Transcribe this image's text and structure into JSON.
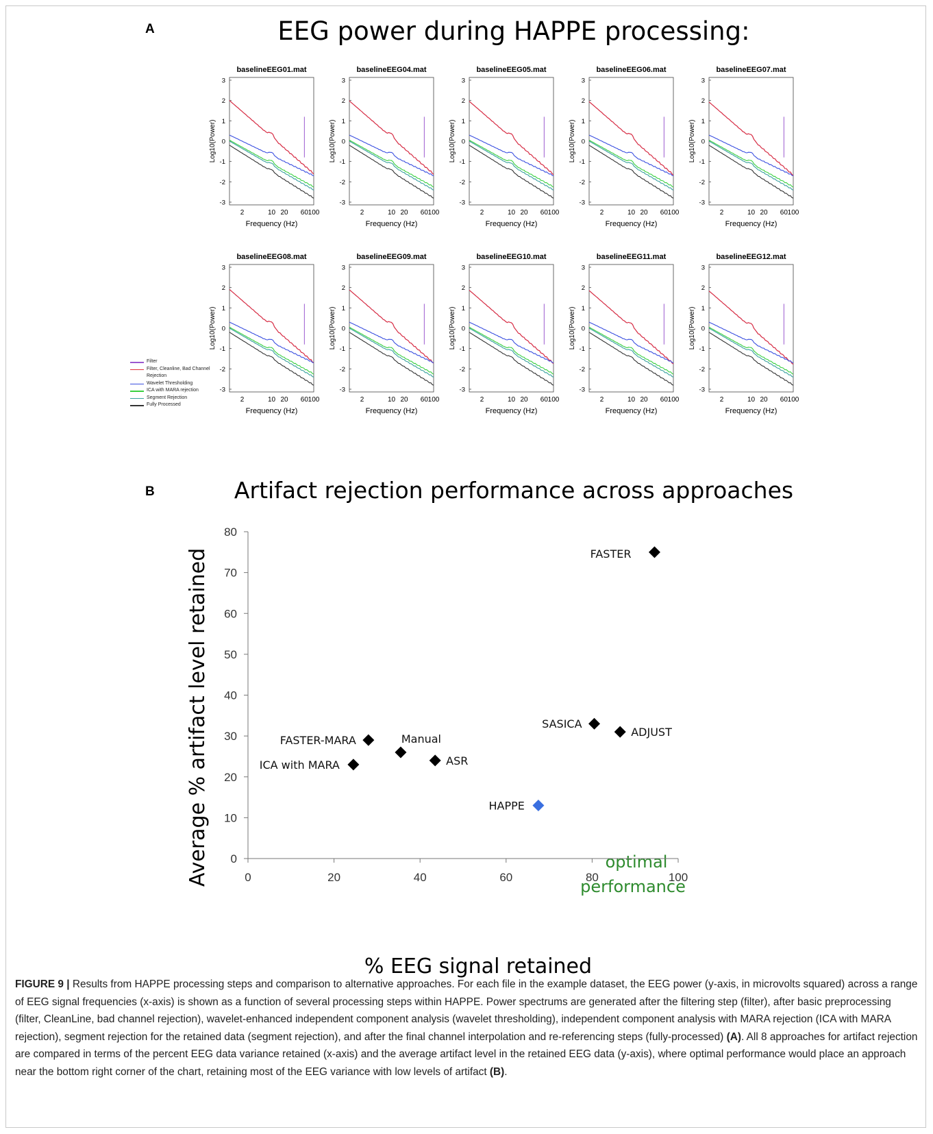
{
  "panel_a": {
    "letter": "A",
    "title": "EEG power during HAPPE processing:",
    "ylabel": "Log10(Power)",
    "xlabel": "Frequency (Hz)",
    "xticks": [
      "2",
      "10",
      "20",
      "60",
      "100"
    ],
    "yticks": [
      "3",
      "2",
      "1",
      "0",
      "-1",
      "-2",
      "-3"
    ],
    "subplot_titles": [
      "baselineEEG01.mat",
      "baselineEEG04.mat",
      "baselineEEG05.mat",
      "baselineEEG06.mat",
      "baselineEEG07.mat",
      "baselineEEG08.mat",
      "baselineEEG09.mat",
      "baselineEEG10.mat",
      "baselineEEG11.mat",
      "baselineEEG12.mat"
    ],
    "legend": [
      {
        "label": "Filter",
        "color": "#9b59d0"
      },
      {
        "label": "Filter, Cleanline, Bad Channel Rejection",
        "color": "#e0303a"
      },
      {
        "label": "Wavelet Thresholding",
        "color": "#3a4fe0"
      },
      {
        "label": "ICA with MARA rejection",
        "color": "#3ad040"
      },
      {
        "label": "Segment Rejection",
        "color": "#3aa0a0"
      },
      {
        "label": "Fully Processed",
        "color": "#333333"
      }
    ]
  },
  "panel_b": {
    "letter": "B",
    "title": "Artifact rejection performance across approaches",
    "annotation": [
      "optimal",
      "performance"
    ],
    "annotation_color": "#2e8b2e"
  },
  "chart_data": {
    "type": "scatter",
    "xlabel": "% EEG signal retained",
    "ylabel": "Average % artifact level retained",
    "xlim": [
      0,
      100
    ],
    "ylim": [
      0,
      80
    ],
    "xticks": [
      0,
      20,
      40,
      60,
      80,
      100
    ],
    "yticks": [
      0,
      10,
      20,
      30,
      40,
      50,
      60,
      70,
      80
    ],
    "points": [
      {
        "label": "FASTER",
        "x": 94.5,
        "y": 75,
        "color": "#000000"
      },
      {
        "label": "SASICA",
        "x": 80.5,
        "y": 33,
        "color": "#000000"
      },
      {
        "label": "ADJUST",
        "x": 86.5,
        "y": 31,
        "color": "#000000"
      },
      {
        "label": "FASTER-MARA",
        "x": 28,
        "y": 29,
        "color": "#000000"
      },
      {
        "label": "Manual",
        "x": 35.5,
        "y": 26,
        "color": "#000000"
      },
      {
        "label": "ASR",
        "x": 43.5,
        "y": 24,
        "color": "#000000"
      },
      {
        "label": "ICA with MARA",
        "x": 24.5,
        "y": 23,
        "color": "#000000"
      },
      {
        "label": "HAPPE",
        "x": 67.5,
        "y": 13,
        "color": "#3a6fe0"
      }
    ]
  },
  "caption": {
    "figure_label": "FIGURE 9 |",
    "text": " Results from HAPPE processing steps and comparison to alternative approaches. For each file in the example dataset, the EEG power (y-axis, in microvolts squared) across a range of EEG signal frequencies (x-axis) is shown as a function of several processing steps within HAPPE. Power spectrums are generated after the filtering step (filter), after basic preprocessing (filter, CleanLine, bad channel rejection), wavelet-enhanced independent component analysis (wavelet thresholding), independent component analysis with MARA rejection (ICA with MARA rejection), segment rejection for the retained data (segment rejection), and after the final channel interpolation and re-referencing steps (fully-processed) ",
    "ref_a": "(A)",
    "text2": ". All 8 approaches for artifact rejection are compared in terms of the percent EEG data variance retained (x-axis) and the average artifact level in the retained EEG data (y-axis), where optimal performance would place an approach near the bottom right corner of the chart, retaining most of the EEG variance with low levels of artifact ",
    "ref_b": "(B)",
    "end": "."
  }
}
